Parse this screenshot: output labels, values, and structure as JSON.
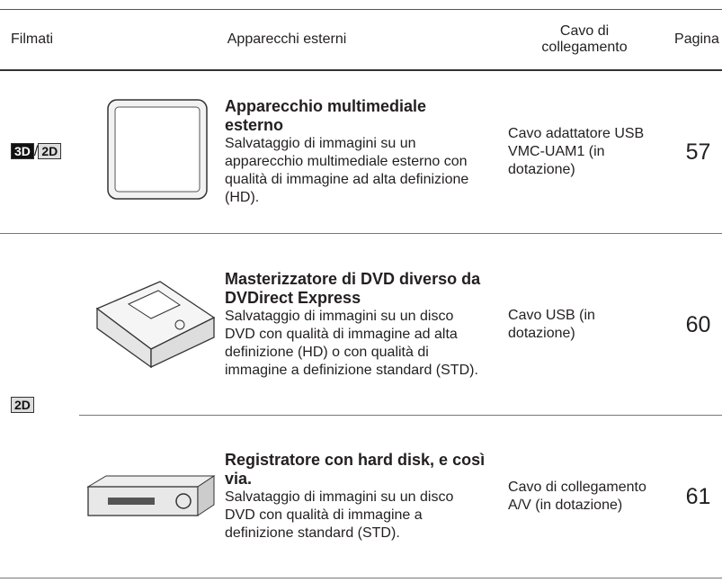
{
  "header": {
    "columns": [
      "Filmati",
      "Apparecchi esterni",
      "Cavo di collegamento",
      "Pagina"
    ]
  },
  "groups": [
    {
      "formats": [
        "3D",
        "2D"
      ],
      "separator": "/",
      "items": [
        {
          "title": "Apparecchio multimediale esterno",
          "description": "Salvataggio di immagini su un apparecchio multimediale esterno con qualità di immagine ad alta definizione (HD).",
          "cable": "Cavo adattatore USB VMC-UAM1 (in dotazione)",
          "page": "57"
        }
      ]
    },
    {
      "formats": [
        "2D"
      ],
      "items": [
        {
          "title": "Masterizzatore di DVD diverso da DVDirect Express",
          "description": "Salvataggio di immagini su un disco DVD con qualità di immagine ad alta definizione (HD) o con qualità di immagine a definizione standard (STD).",
          "cable": "Cavo USB (in dotazione)",
          "page": "60"
        },
        {
          "title": "Registratore con hard disk, e così via.",
          "description": "Salvataggio di immagini su un disco DVD con qualità di immagine a definizione standard (STD).",
          "cable": "Cavo di collegamento A/V (in dotazione)",
          "page": "61"
        }
      ]
    }
  ]
}
